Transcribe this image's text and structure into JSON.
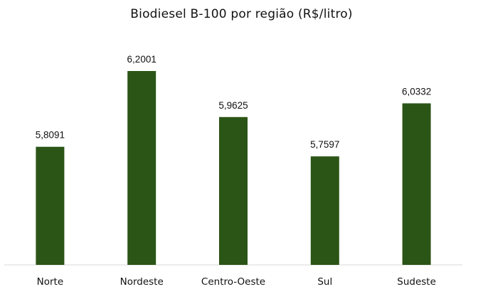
{
  "chart_data": {
    "type": "bar",
    "title": "Biodiesel B-100 por região (R$/litro)",
    "categories": [
      "Norte",
      "Nordeste",
      "Centro-Oeste",
      "Sul",
      "Sudeste"
    ],
    "values": [
      5.8091,
      6.2001,
      5.9625,
      5.7597,
      6.0332
    ],
    "value_labels": [
      "5,8091",
      "6,2001",
      "5,9625",
      "5,7597",
      "6,0332"
    ],
    "ylim": [
      5.2,
      6.2
    ],
    "grid": false,
    "legend": "none",
    "bar_color": "#2b5517",
    "baseline_color": "#d9d9d9",
    "xlabel": "",
    "ylabel": ""
  }
}
